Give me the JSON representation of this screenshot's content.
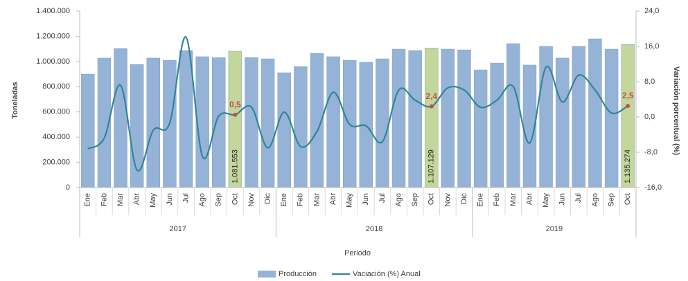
{
  "chart_data": {
    "type": "bar-line",
    "x_label": "Periodo",
    "y_label": "Toneladas",
    "y2_label": "Variación porcentual (%)",
    "categories": [
      "Ene",
      "Feb",
      "Mar",
      "Abr",
      "May",
      "Jun",
      "Jul",
      "Ago",
      "Sep",
      "Oct",
      "Nov",
      "Dic",
      "Ene",
      "Feb",
      "Mar",
      "Abr",
      "May",
      "Jun",
      "Jul",
      "Ago",
      "Sep",
      "Oct",
      "Nov",
      "Dic",
      "Ene",
      "Feb",
      "Mar",
      "Abr",
      "May",
      "Jun",
      "Jul",
      "Ago",
      "Sep",
      "Oct"
    ],
    "groups": [
      {
        "name": "2017",
        "size": 12
      },
      {
        "name": "2018",
        "size": 12
      },
      {
        "name": "2019",
        "size": 10
      }
    ],
    "ylim": [
      0,
      1400000
    ],
    "yticks": [
      0,
      {
        "value": 200000,
        "label": "200.000"
      },
      {
        "value": 400000,
        "label": "400.000"
      },
      {
        "value": 600000,
        "label": "600.000"
      },
      {
        "value": 800000,
        "label": "800.000"
      },
      {
        "value": 1000000,
        "label": "1.000.000"
      },
      {
        "value": 1200000,
        "label": "1.200.000"
      },
      {
        "value": 1400000,
        "label": "1.400.000"
      }
    ],
    "y2lim": [
      -16,
      24
    ],
    "y2ticks": [
      {
        "value": -16,
        "label": "-16,0"
      },
      {
        "value": -8,
        "label": "-8,0"
      },
      {
        "value": 0,
        "label": "0,0"
      },
      {
        "value": 8,
        "label": "8,0"
      },
      {
        "value": 16,
        "label": "16,0"
      },
      {
        "value": 24,
        "label": "24,0"
      }
    ],
    "grid": false,
    "legend": "bottom",
    "series": [
      {
        "name": "Producción",
        "kind": "bar",
        "color": "#95b3d7",
        "colors": [
          "#95b3d7",
          "#95b3d7",
          "#95b3d7",
          "#95b3d7",
          "#95b3d7",
          "#95b3d7",
          "#95b3d7",
          "#95b3d7",
          "#95b3d7",
          "#c3d69b",
          "#95b3d7",
          "#95b3d7",
          "#95b3d7",
          "#95b3d7",
          "#95b3d7",
          "#95b3d7",
          "#95b3d7",
          "#95b3d7",
          "#95b3d7",
          "#95b3d7",
          "#95b3d7",
          "#c3d69b",
          "#95b3d7",
          "#95b3d7",
          "#95b3d7",
          "#95b3d7",
          "#95b3d7",
          "#95b3d7",
          "#95b3d7",
          "#95b3d7",
          "#95b3d7",
          "#95b3d7",
          "#95b3d7",
          "#c3d69b"
        ],
        "values": [
          900000,
          1027000,
          1103000,
          977000,
          1027000,
          1010000,
          1087000,
          1038000,
          1032000,
          1081553,
          1032000,
          1021000,
          911000,
          960000,
          1065000,
          1038000,
          1010000,
          994000,
          1021000,
          1098000,
          1087000,
          1107129,
          1098000,
          1092000,
          933000,
          988000,
          1142000,
          972000,
          1120000,
          1027000,
          1120000,
          1180000,
          1098000,
          1135274
        ],
        "value_labels": [
          null,
          null,
          null,
          null,
          null,
          null,
          null,
          null,
          null,
          "1.081.553",
          null,
          null,
          null,
          null,
          null,
          null,
          null,
          null,
          null,
          null,
          null,
          "1.107.129",
          null,
          null,
          null,
          null,
          null,
          null,
          null,
          null,
          null,
          null,
          null,
          "1.135.274"
        ]
      },
      {
        "name": "Vaciación (%) Anual",
        "kind": "line",
        "axis": "y2",
        "color": "#31849b",
        "values": [
          -7.2,
          -4.8,
          7.2,
          -12,
          -3,
          -1.4,
          18.1,
          -8.9,
          0.2,
          0.5,
          2.2,
          -7,
          1.1,
          -6.7,
          -3.3,
          5.6,
          -1.7,
          -2,
          -5.6,
          6.1,
          3.8,
          2.4,
          6.6,
          6.1,
          2.2,
          3.8,
          6.9,
          -5.9,
          11.3,
          3.4,
          9.5,
          6.1,
          0.9,
          2.5
        ],
        "value_labels": [
          null,
          null,
          null,
          null,
          null,
          null,
          null,
          null,
          null,
          "0,5",
          null,
          null,
          null,
          null,
          null,
          null,
          null,
          null,
          null,
          null,
          null,
          "2,4",
          null,
          null,
          null,
          null,
          null,
          null,
          null,
          null,
          null,
          null,
          null,
          "2,5"
        ],
        "marker_color": "#c0504d"
      }
    ]
  }
}
